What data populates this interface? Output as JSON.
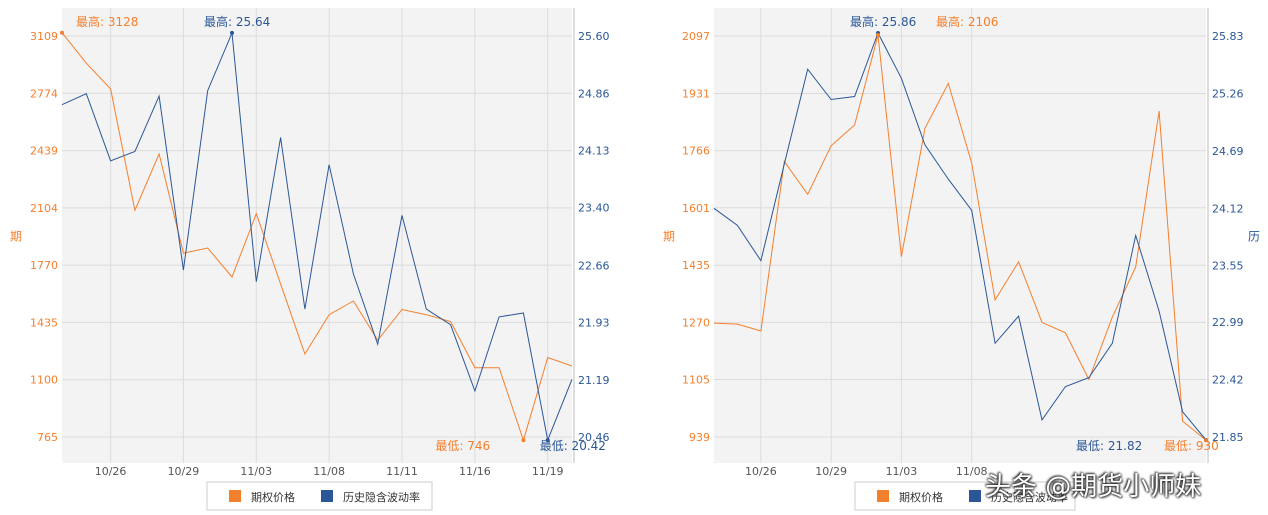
{
  "colors": {
    "price": "#f47f2c",
    "vol": "#2b5797",
    "plot_bg": "#f3f3f3",
    "grid": "#dcdcdc"
  },
  "watermark": "头条 @期货小师妹",
  "chart_data": [
    {
      "type": "line",
      "ylabel_left": "期",
      "ylabel_right": "",
      "ylim_left": [
        765,
        3109
      ],
      "yticks_left": [
        "765",
        "1100",
        "1435",
        "1770",
        "2104",
        "2439",
        "2774",
        "3109"
      ],
      "ylim_right": [
        20.46,
        25.6
      ],
      "yticks_right": [
        "20.46",
        "21.19",
        "21.93",
        "22.66",
        "23.40",
        "24.13",
        "24.86",
        "25.60"
      ],
      "x_ticks": [
        "10/26",
        "10/29",
        "11/03",
        "11/08",
        "11/11",
        "11/16",
        "11/19"
      ],
      "x_tick_index": [
        2,
        5,
        8,
        11,
        14,
        17,
        20
      ],
      "series": [
        {
          "name": "期权价格",
          "axis": "left",
          "values": [
            3128,
            2950,
            2800,
            2090,
            2420,
            1840,
            1870,
            1700,
            2070,
            1660,
            1250,
            1480,
            1560,
            1330,
            1510,
            1480,
            1440,
            1170,
            1170,
            746,
            1230,
            1180
          ]
        },
        {
          "name": "历史隐含波动率",
          "axis": "right",
          "values": [
            24.72,
            24.86,
            24.0,
            24.12,
            24.83,
            22.6,
            24.9,
            25.64,
            22.45,
            24.3,
            22.1,
            23.95,
            22.55,
            21.65,
            23.3,
            22.1,
            21.9,
            21.05,
            22.0,
            22.05,
            20.42,
            21.2
          ]
        }
      ],
      "annotations": [
        {
          "label": "最高",
          "value": "3128",
          "series": 0,
          "kind": "max"
        },
        {
          "label": "最高",
          "value": "25.64",
          "series": 1,
          "kind": "max"
        },
        {
          "label": "最低",
          "value": "746",
          "series": 0,
          "kind": "min"
        },
        {
          "label": "最低",
          "value": "20.42",
          "series": 1,
          "kind": "min"
        }
      ],
      "legend": [
        {
          "name": "期权价格",
          "series": 0
        },
        {
          "name": "历史隐含波动率",
          "series": 1
        }
      ],
      "legend_position": "bottom-center",
      "grid": true
    },
    {
      "type": "line",
      "ylabel_left": "期",
      "ylabel_right": "历",
      "ylim_left": [
        939,
        2097
      ],
      "yticks_left": [
        "939",
        "1105",
        "1270",
        "1435",
        "1601",
        "1766",
        "1931",
        "2097"
      ],
      "ylim_right": [
        21.85,
        25.83
      ],
      "yticks_right": [
        "21.85",
        "22.42",
        "22.99",
        "23.55",
        "24.12",
        "24.69",
        "25.26",
        "25.83"
      ],
      "x_ticks": [
        "10/26",
        "10/29",
        "11/03",
        "11/08"
      ],
      "x_tick_index": [
        2,
        5,
        8,
        11
      ],
      "series": [
        {
          "name": "期权价格",
          "axis": "left",
          "values": [
            1268,
            1265,
            1245,
            1735,
            1640,
            1780,
            1840,
            2100,
            1460,
            1830,
            1960,
            1730,
            1335,
            1445,
            1270,
            1240,
            1105,
            1285,
            1430,
            1880,
            985,
            930
          ]
        },
        {
          "name": "历史隐含波动率",
          "axis": "right",
          "values": [
            24.12,
            23.95,
            23.6,
            24.56,
            25.5,
            25.2,
            25.23,
            25.86,
            25.41,
            24.75,
            24.41,
            24.1,
            22.78,
            23.05,
            22.02,
            22.35,
            22.44,
            22.78,
            23.85,
            23.1,
            22.1,
            21.82
          ]
        }
      ],
      "annotations": [
        {
          "label": "最高",
          "value": "25.86",
          "series": 1,
          "kind": "max"
        },
        {
          "label": "最高",
          "value": "2106",
          "series": 0,
          "kind": "max"
        },
        {
          "label": "最低",
          "value": "21.82",
          "series": 1,
          "kind": "min"
        },
        {
          "label": "最低",
          "value": "930",
          "series": 0,
          "kind": "min"
        }
      ],
      "legend": [
        {
          "name": "期权价格",
          "series": 0
        },
        {
          "name": "历史隐含波动率",
          "series": 1
        }
      ],
      "legend_position": "bottom-center",
      "grid": true
    }
  ]
}
